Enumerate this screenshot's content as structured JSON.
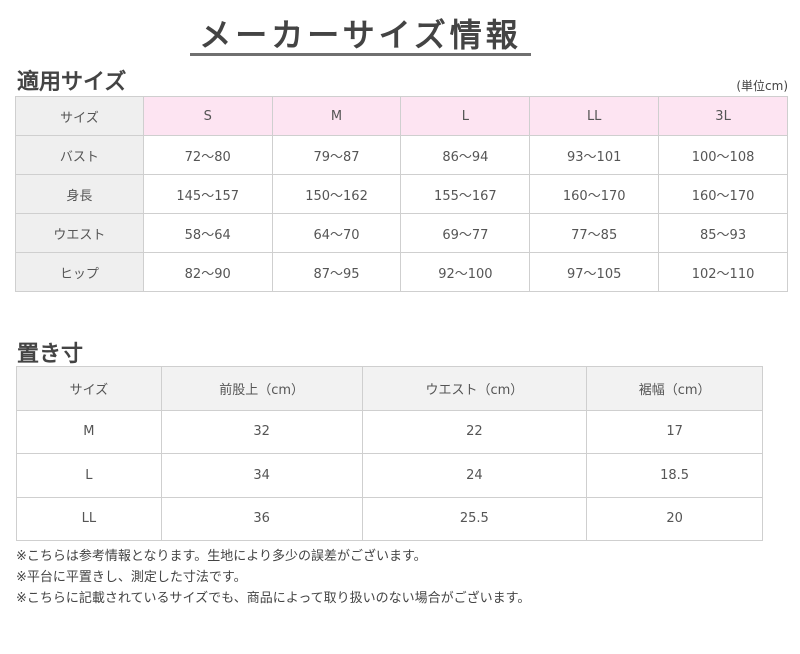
{
  "title": "メーカーサイズ情報",
  "section1": {
    "heading": "適用サイズ",
    "unit": "(単位cm)",
    "header": [
      "サイズ",
      "S",
      "M",
      "L",
      "LL",
      "3L"
    ],
    "rows": [
      [
        "バスト",
        "72〜80",
        "79〜87",
        "86〜94",
        "93〜101",
        "100〜108"
      ],
      [
        "身長",
        "145〜157",
        "150〜162",
        "155〜167",
        "160〜170",
        "160〜170"
      ],
      [
        "ウエスト",
        "58〜64",
        "64〜70",
        "69〜77",
        "77〜85",
        "85〜93"
      ],
      [
        "ヒップ",
        "82〜90",
        "87〜95",
        "92〜100",
        "97〜105",
        "102〜110"
      ]
    ]
  },
  "section2": {
    "heading": "置き寸",
    "header": [
      "サイズ",
      "前股上（cm）",
      "ウエスト（cm）",
      "裾幅（cm）"
    ],
    "rows": [
      [
        "M",
        "32",
        "22",
        "17"
      ],
      [
        "L",
        "34",
        "24",
        "18.5"
      ],
      [
        "LL",
        "36",
        "25.5",
        "20"
      ]
    ]
  },
  "notes": [
    "※こちらは参考情報となります。生地により多少の誤差がございます。",
    "※平台に平置きし、測定した寸法です。",
    "※こちらに記載されているサイズでも、商品によって取り扱いのない場合がございます。"
  ],
  "colors": {
    "header_pink": "#fde4f2",
    "header_gray": "#efefef",
    "border": "#cfcfcf"
  }
}
